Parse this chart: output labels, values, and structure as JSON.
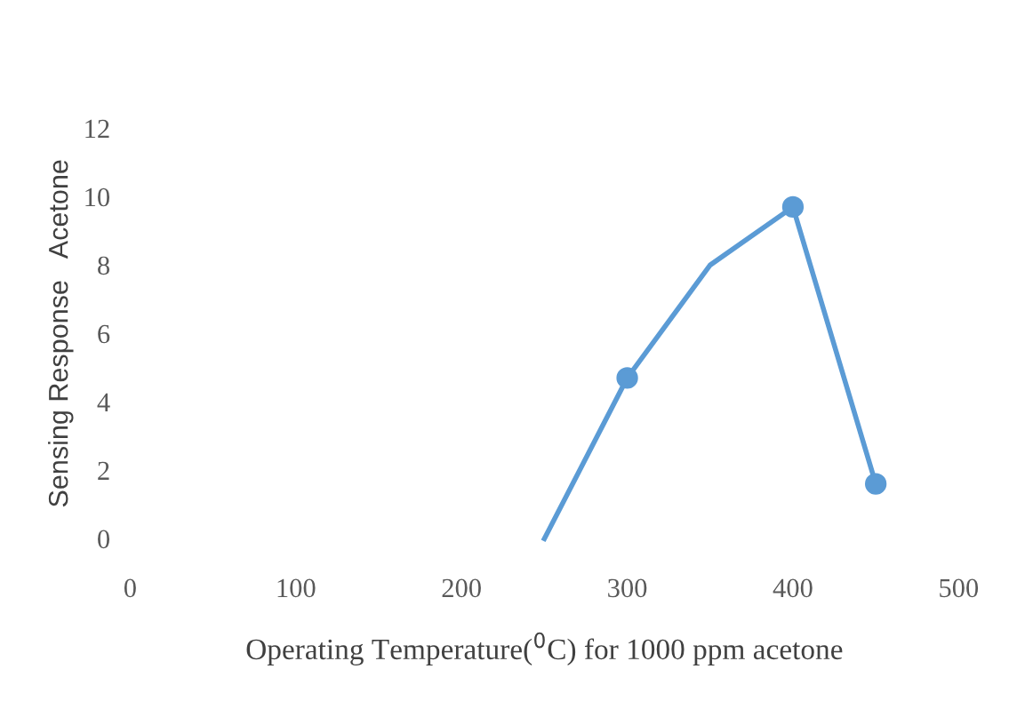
{
  "chart_data": {
    "type": "line",
    "xlabel": "Operating Temperature($^{0}$C) for 1000 ppm acetone",
    "ylabel": "Sensing Response   Acetone",
    "series": [
      {
        "color": "#5b9bd5",
        "x": [
          250,
          300,
          350,
          400,
          450
        ],
        "values": [
          0,
          4.7,
          8.0,
          9.7,
          1.6
        ],
        "marker": "none"
      },
      {
        "type": "scatter",
        "color": "#5b9bd5",
        "x": [
          300,
          400,
          450
        ],
        "values": [
          4.7,
          9.7,
          1.6
        ],
        "marker": "circle"
      }
    ],
    "xlim": [
      0,
      500
    ],
    "xticks": [
      0,
      100,
      200,
      300,
      400,
      500
    ],
    "ylim": [
      0,
      12
    ],
    "yticks": [
      0,
      2,
      4,
      6,
      8,
      10,
      12
    ],
    "grid": false,
    "legend": false
  }
}
